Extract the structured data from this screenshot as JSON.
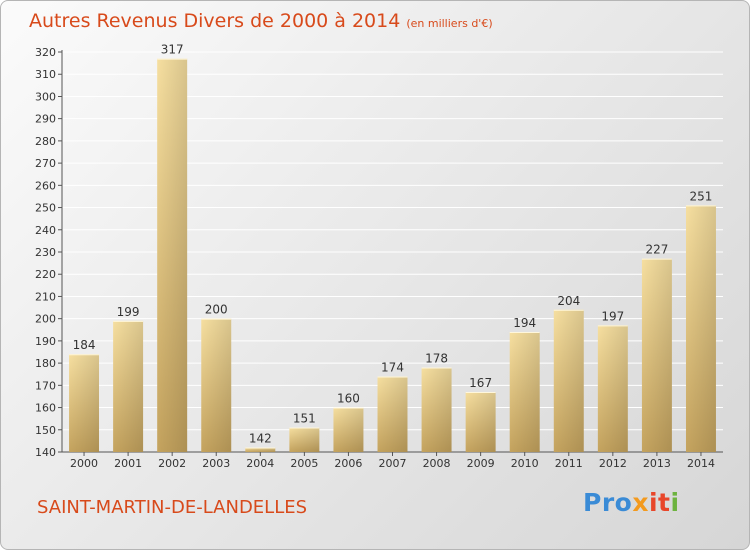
{
  "title": {
    "main": "Autres Revenus Divers de 2000 à 2014",
    "unit": "(en milliers d'€)"
  },
  "commune": "SAINT-MARTIN-DE-LANDELLES",
  "logo": {
    "text": "Proxiti",
    "parts": [
      "Pro",
      "x",
      "it",
      "i"
    ],
    "colors": [
      "#3a8bd6",
      "#f39a1e",
      "#e8462a",
      "#6db33f"
    ]
  },
  "colors": {
    "title": "#d84a1b",
    "bar_light": "#f6dfa0",
    "bar_dark": "#c4a35e",
    "axis": "#555555",
    "grid": "#ffffff"
  },
  "chart_data": {
    "type": "bar",
    "categories": [
      "2000",
      "2001",
      "2002",
      "2003",
      "2004",
      "2005",
      "2006",
      "2007",
      "2008",
      "2009",
      "2010",
      "2011",
      "2012",
      "2013",
      "2014"
    ],
    "values": [
      184,
      199,
      317,
      200,
      142,
      151,
      160,
      174,
      178,
      167,
      194,
      204,
      197,
      227,
      251
    ],
    "ylim": [
      140,
      320
    ],
    "yticks": [
      140,
      150,
      160,
      170,
      180,
      190,
      200,
      210,
      220,
      230,
      240,
      250,
      260,
      270,
      280,
      290,
      300,
      310,
      320
    ],
    "grid": true,
    "xlabel": "",
    "ylabel": ""
  }
}
